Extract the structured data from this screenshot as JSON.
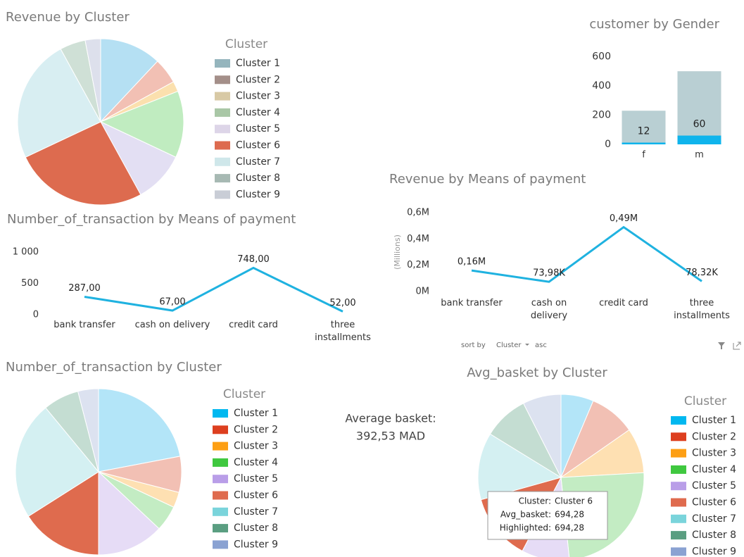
{
  "chart_data": [
    {
      "type": "pie",
      "title": "Revenue by Cluster",
      "legend_title": "Cluster",
      "categories": [
        "Cluster 1",
        "Cluster 2",
        "Cluster 3",
        "Cluster 4",
        "Cluster 5",
        "Cluster 6",
        "Cluster 7",
        "Cluster 8",
        "Cluster 9"
      ],
      "values": [
        12,
        5,
        2,
        13,
        10,
        26,
        24,
        5,
        3
      ],
      "colors": [
        "#b5e0f3",
        "#f2c0b4",
        "#fbe0ae",
        "#c0ecc0",
        "#e3dff3",
        "#dd6b4f",
        "#d8eef2",
        "#cfe0d6",
        "#dde0ec"
      ],
      "legend_colors": [
        "#95b5bd",
        "#a48f89",
        "#d8c9a5",
        "#a9c7a6",
        "#ddd5e8",
        "#dd6b4f",
        "#cfe7ea",
        "#a7b9b3",
        "#c9cdd6"
      ]
    },
    {
      "type": "bar",
      "title": "customer by Gender",
      "categories": [
        "f",
        "m"
      ],
      "series": [
        {
          "color": "#b9cfd3",
          "values": [
            230,
            500
          ]
        },
        {
          "color": "#0fb4ec",
          "values": [
            12,
            60
          ],
          "data_labels": true
        }
      ],
      "ylim": [
        0,
        650
      ],
      "yticks": [
        0,
        200,
        400,
        600
      ]
    },
    {
      "type": "line",
      "title": "Number_of_transaction by Means of payment",
      "categories": [
        "bank transfer",
        "cash on delivery",
        "credit card",
        "three\ninstallments"
      ],
      "values": [
        287,
        67,
        748,
        52
      ],
      "value_labels": [
        "287,00",
        "67,00",
        "748,00",
        "52,00"
      ],
      "color": "#1fb2e0",
      "ylim": [
        0,
        1000
      ],
      "yticks": [
        0,
        500,
        {
          "value": 1000,
          "label": "1 000"
        }
      ]
    },
    {
      "type": "line",
      "title": "Revenue by Means of payment",
      "y_label": "(Millions)",
      "categories": [
        "bank transfer",
        "cash on\ndelivery",
        "credit card",
        "three\ninstallments"
      ],
      "values": [
        160000,
        73980,
        490000,
        78320
      ],
      "value_labels": [
        "0,16M",
        "73,98K",
        "0,49M",
        "78,32K"
      ],
      "color": "#1fb2e0",
      "ylim": [
        0,
        600000
      ],
      "yticks": [
        {
          "value": 0,
          "label": "0M"
        },
        {
          "value": 200000,
          "label": "0,2M"
        },
        {
          "value": 400000,
          "label": "0,4M"
        },
        {
          "value": 600000,
          "label": "0,6M"
        }
      ]
    },
    {
      "type": "pie",
      "title": "Number_of_transaction by Cluster",
      "legend_title": "Cluster",
      "categories": [
        "Cluster 1",
        "Cluster 2",
        "Cluster 3",
        "Cluster 4",
        "Cluster 5",
        "Cluster 6",
        "Cluster 7",
        "Cluster 8",
        "Cluster 9"
      ],
      "values": [
        22,
        7,
        3,
        5,
        13,
        16,
        23,
        7,
        4
      ],
      "colors": [
        "#b3e5f8",
        "#f2c0b4",
        "#fee0b2",
        "#c3ecc3",
        "#e6dcf6",
        "#df6b4e",
        "#d4f0f2",
        "#c4ddd2",
        "#dce2f0"
      ],
      "legend_colors": [
        "#01b8f0",
        "#dd3f1f",
        "#fd9f14",
        "#3fc83f",
        "#b99ee8",
        "#df6b4e",
        "#7ad4db",
        "#5a9e81",
        "#8aa2d2"
      ]
    },
    {
      "type": "pie",
      "title": "Avg_basket by Cluster",
      "legend_title": "Cluster",
      "categories": [
        "Cluster 1",
        "Cluster 2",
        "Cluster 3",
        "Cluster 4",
        "Cluster 5",
        "Cluster 6",
        "Cluster 7",
        "Cluster 8",
        "Cluster 9"
      ],
      "values": [
        340,
        480,
        470,
        1300,
        500,
        694.28,
        700,
        470,
        400
      ],
      "colors": [
        "#b3e5f8",
        "#f2c0b4",
        "#fee0b2",
        "#c3ecc3",
        "#e6dcf6",
        "#df6b4e",
        "#d4f0f2",
        "#c4ddd2",
        "#dce2f0"
      ],
      "legend_colors": [
        "#01b8f0",
        "#dd3f1f",
        "#fd9f14",
        "#3fc83f",
        "#b99ee8",
        "#df6b4e",
        "#7ad4db",
        "#5a9e81",
        "#8aa2d2"
      ]
    }
  ],
  "card": {
    "label": "Average basket:",
    "value": "392,53 MAD"
  },
  "sort_bar": {
    "label": "sort by",
    "field": "Cluster",
    "order": "asc"
  },
  "tooltip": [
    {
      "label": "Cluster:",
      "value": "Cluster 6"
    },
    {
      "label": "Avg_basket:",
      "value": "694,28"
    },
    {
      "label": "Highlighted:",
      "value": "694,28"
    }
  ]
}
